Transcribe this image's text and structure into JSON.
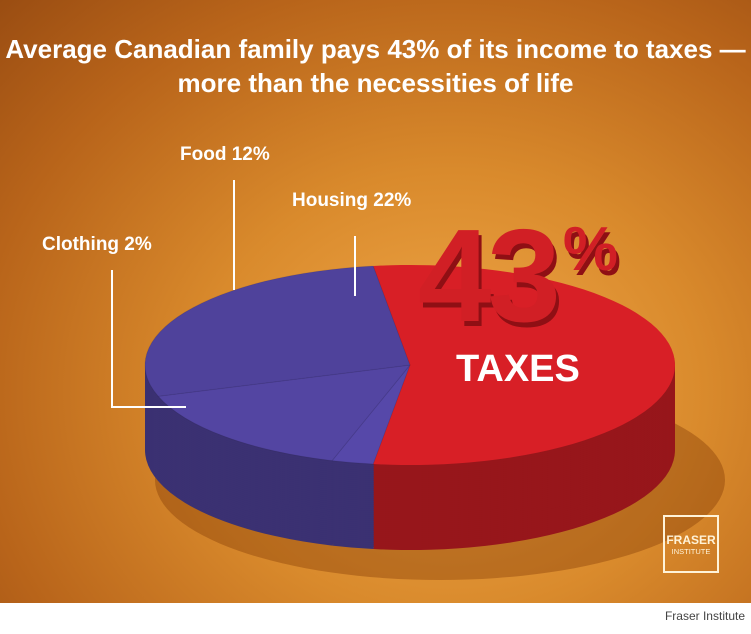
{
  "title": "Average Canadian family pays 43% of its income to taxes — more than the necessities of life",
  "chart_data": {
    "type": "pie",
    "title": "Average Canadian family pays 43% of its income to taxes — more than the necessities of life",
    "slices": [
      {
        "label": "TAXES",
        "value": 43,
        "display": "43%",
        "color": "#d81f26"
      },
      {
        "label": "Clothing 2%",
        "value": 2,
        "color": "#5a4bb0"
      },
      {
        "label": "Food 12%",
        "value": 12,
        "color": "#5a4bb0"
      },
      {
        "label": "Housing 22%",
        "value": 22,
        "color": "#5a4bb0"
      }
    ]
  },
  "labels": {
    "food": "Food 12%",
    "housing": "Housing 22%",
    "clothing": "Clothing 2%",
    "big": "43",
    "pct": "%",
    "taxes": "TAXES"
  },
  "logo": {
    "line1": "FRASER",
    "line2": "INSTITUTE"
  },
  "caption": "Fraser Institute"
}
